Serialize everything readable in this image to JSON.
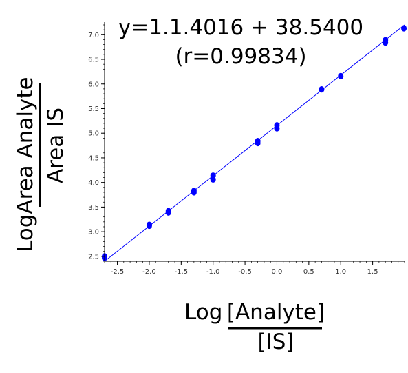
{
  "chart_data": {
    "type": "scatter",
    "title": "",
    "equation": "y=1.1.4016 + 38.5400",
    "correlation": "(r=0.99834)",
    "xlabel": {
      "prefix": "Log",
      "numerator": "[Analyte]",
      "denominator": "[IS]"
    },
    "ylabel": {
      "prefix": "Log",
      "numerator": "Area Analyte",
      "denominator": "Area IS"
    },
    "xlim": [
      -2.7,
      2.0
    ],
    "ylim": [
      2.4,
      7.2
    ],
    "x_ticks": [
      -2.5,
      -2.0,
      -1.5,
      -1.0,
      -0.5,
      0.0,
      0.5,
      1.0,
      1.5
    ],
    "x_tick_labels": [
      "-2.5",
      "-2.0",
      "-1.5",
      "-1.0",
      "-0.5",
      "0.0",
      "0.5",
      "1.0",
      "1.5"
    ],
    "y_ticks": [
      2.5,
      3.0,
      3.5,
      4.0,
      4.5,
      5.0,
      5.5,
      6.0,
      6.5,
      7.0
    ],
    "y_tick_labels": [
      "2.5",
      "3.0",
      "3.5",
      "4.0",
      "4.5",
      "5.0",
      "5.5",
      "6.0",
      "6.5",
      "7.0"
    ],
    "grid": false,
    "series": [
      {
        "points": [
          {
            "x": -2.7,
            "y": 2.47
          },
          {
            "x": -2.7,
            "y": 2.5
          },
          {
            "x": -2.0,
            "y": 3.12
          },
          {
            "x": -2.0,
            "y": 3.14
          },
          {
            "x": -1.7,
            "y": 3.39
          },
          {
            "x": -1.7,
            "y": 3.42
          },
          {
            "x": -1.3,
            "y": 3.8
          },
          {
            "x": -1.3,
            "y": 3.83
          },
          {
            "x": -1.0,
            "y": 4.06
          },
          {
            "x": -1.0,
            "y": 4.14
          },
          {
            "x": -0.3,
            "y": 4.8
          },
          {
            "x": -0.3,
            "y": 4.84
          },
          {
            "x": 0.0,
            "y": 5.1
          },
          {
            "x": 0.0,
            "y": 5.16
          },
          {
            "x": 0.7,
            "y": 5.89
          },
          {
            "x": 1.0,
            "y": 6.16
          },
          {
            "x": 1.7,
            "y": 6.84
          },
          {
            "x": 1.7,
            "y": 6.89
          },
          {
            "x": 1.99,
            "y": 7.13
          }
        ]
      }
    ],
    "fit_line": {
      "x": [
        -2.7,
        2.0
      ],
      "y": [
        2.4,
        7.2
      ]
    },
    "colors": {
      "points": "#0000ff",
      "line": "#0000ff",
      "axis": "#000000"
    }
  }
}
